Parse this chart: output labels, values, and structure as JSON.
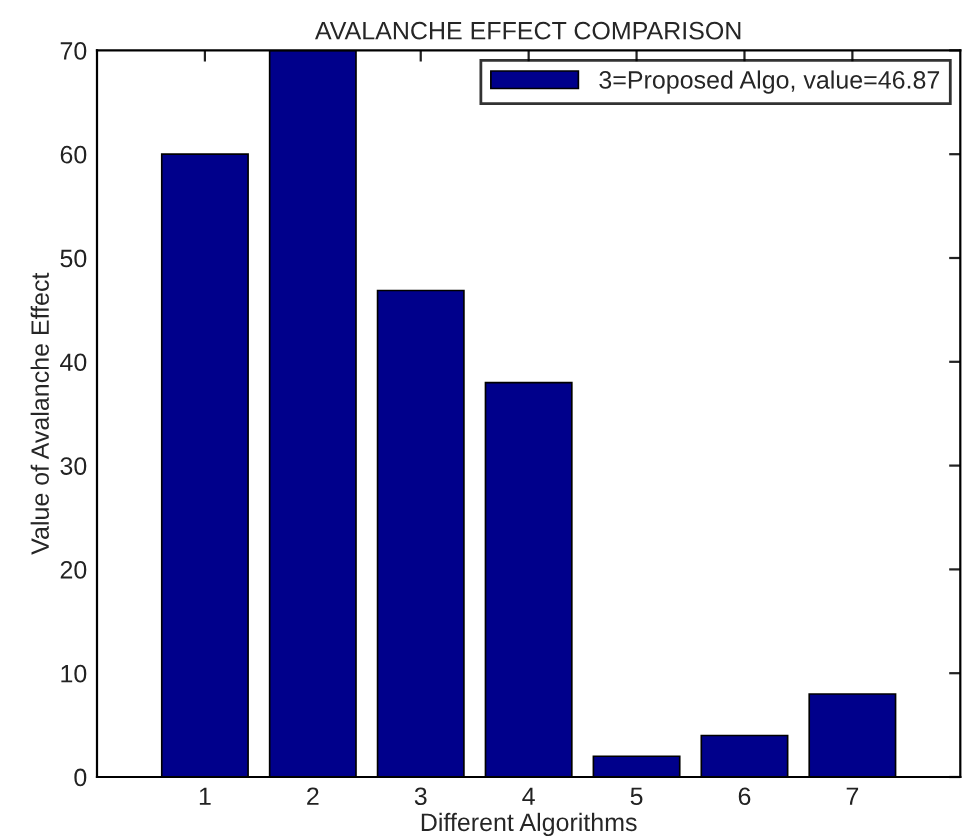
{
  "chart_data": {
    "type": "bar",
    "title": "AVALANCHE EFFECT COMPARISON",
    "xlabel": "Different Algorithms",
    "ylabel": "Value of Avalanche Effect",
    "categories": [
      "1",
      "2",
      "3",
      "4",
      "5",
      "6",
      "7"
    ],
    "series": [
      {
        "name": "3=Proposed Algo, value=46.87",
        "color": "#00008b",
        "values": [
          60,
          70,
          46.87,
          38,
          2,
          4,
          8
        ]
      }
    ],
    "ylim": [
      0,
      70
    ],
    "yticks": [
      0,
      10,
      20,
      30,
      40,
      50,
      60,
      70
    ],
    "grid": false,
    "legend": "top right"
  }
}
